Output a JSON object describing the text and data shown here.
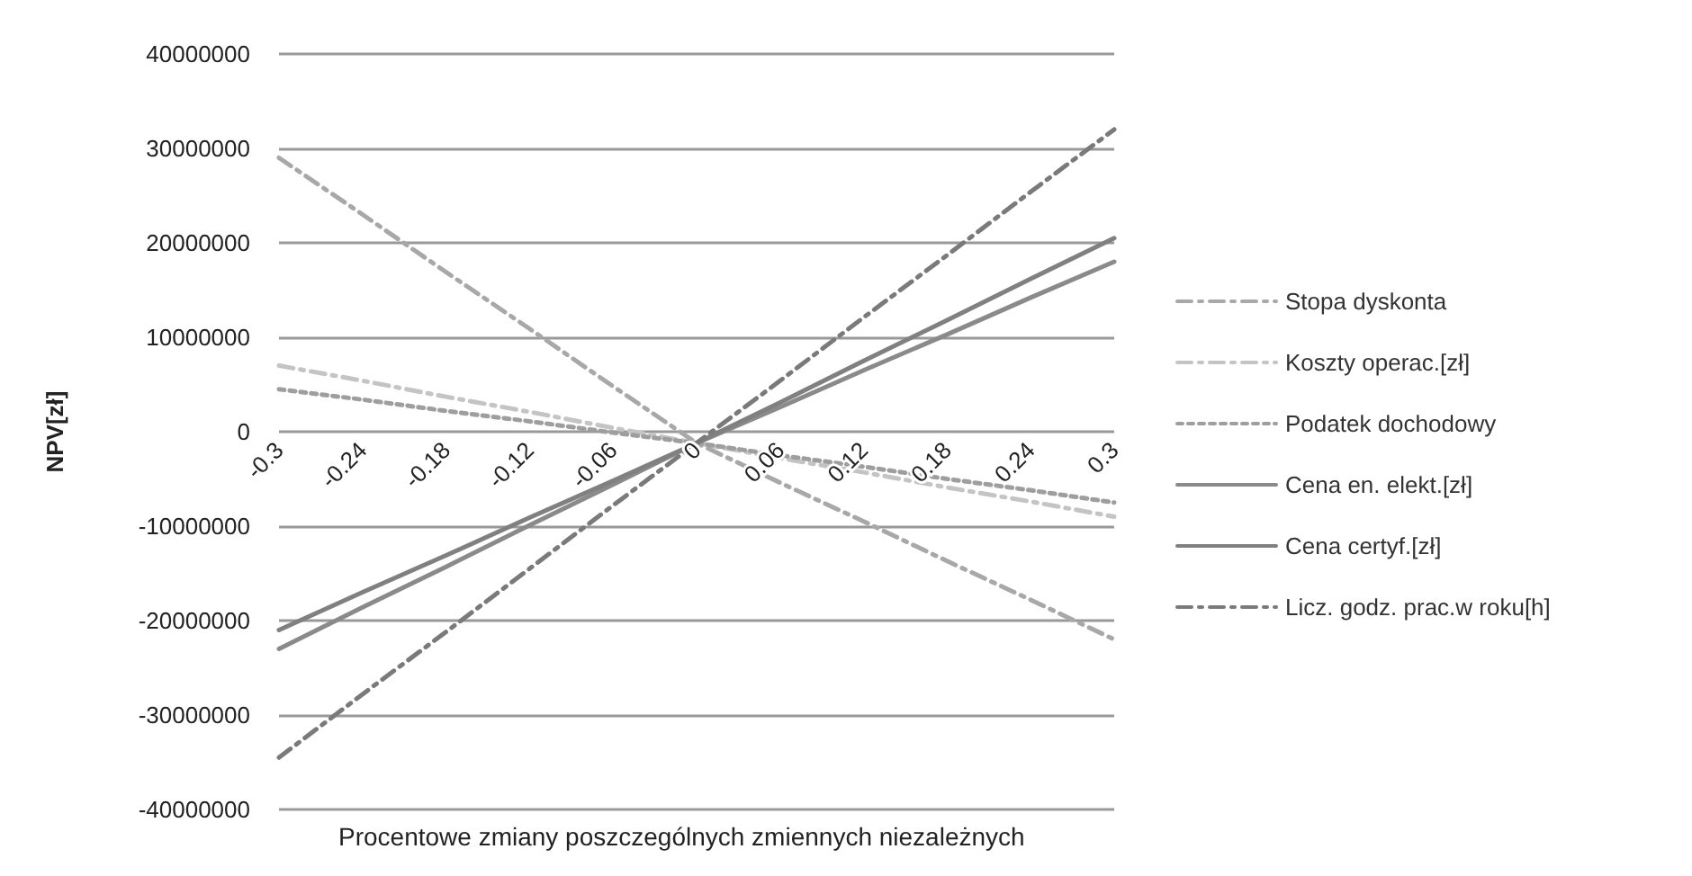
{
  "chart_data": {
    "type": "line",
    "xlabel": "Procentowe zmiany poszczególnych zmiennych niezależnych",
    "ylabel": "NPV[zł]",
    "categories": [
      "-0.3",
      "-0.24",
      "-0.18",
      "-0.12",
      "-0.06",
      "0",
      "0.06",
      "0.12",
      "0.18",
      "0.24",
      "0.3"
    ],
    "series": [
      {
        "name": "Stopa dyskonta",
        "color": "#a8a8a8",
        "line_style": "dashed",
        "values": [
          29000000,
          23000000,
          16900000,
          10900000,
          4800000,
          -1200000,
          -5400000,
          -9500000,
          -13700000,
          -17800000,
          -22000000
        ]
      },
      {
        "name": "Koszty operac.[zł]",
        "color": "#c4c4c4",
        "line_style": "dashed",
        "values": [
          7000000,
          5400000,
          3700000,
          2100000,
          400000,
          -1200000,
          -2800000,
          -4300000,
          -5900000,
          -7400000,
          -9000000
        ]
      },
      {
        "name": "Podatek dochodowy",
        "color": "#9e9e9e",
        "line_style": "dotted",
        "values": [
          4500000,
          3400000,
          2200000,
          1100000,
          -100000,
          -1200000,
          -2500000,
          -3700000,
          -5000000,
          -6200000,
          -7500000
        ]
      },
      {
        "name": "Cena en. elekt.[zł]",
        "color": "#8a8a8a",
        "line_style": "solid",
        "values": [
          -23000000,
          -18600000,
          -14300000,
          -9900000,
          -5600000,
          -1200000,
          2600000,
          6500000,
          10300000,
          14200000,
          18000000
        ]
      },
      {
        "name": "Cena certyf.[zł]",
        "color": "#808080",
        "line_style": "solid",
        "values": [
          -21000000,
          -17000000,
          -13100000,
          -9100000,
          -5200000,
          -1200000,
          3100000,
          7500000,
          11800000,
          16200000,
          20500000
        ]
      },
      {
        "name": "Licz. godz. prac.w roku[h]",
        "color": "#7a7a7a",
        "line_style": "dashed",
        "values": [
          -34500000,
          -27800000,
          -21200000,
          -14500000,
          -7800000,
          -1200000,
          5400000,
          12100000,
          18700000,
          25400000,
          32000000
        ]
      }
    ],
    "ylim": [
      -40000000,
      40000000
    ],
    "yticks": [
      -40000000,
      -30000000,
      -20000000,
      -10000000,
      0,
      10000000,
      20000000,
      30000000,
      40000000
    ],
    "grid": "y",
    "legend": "right",
    "marker": "none"
  }
}
